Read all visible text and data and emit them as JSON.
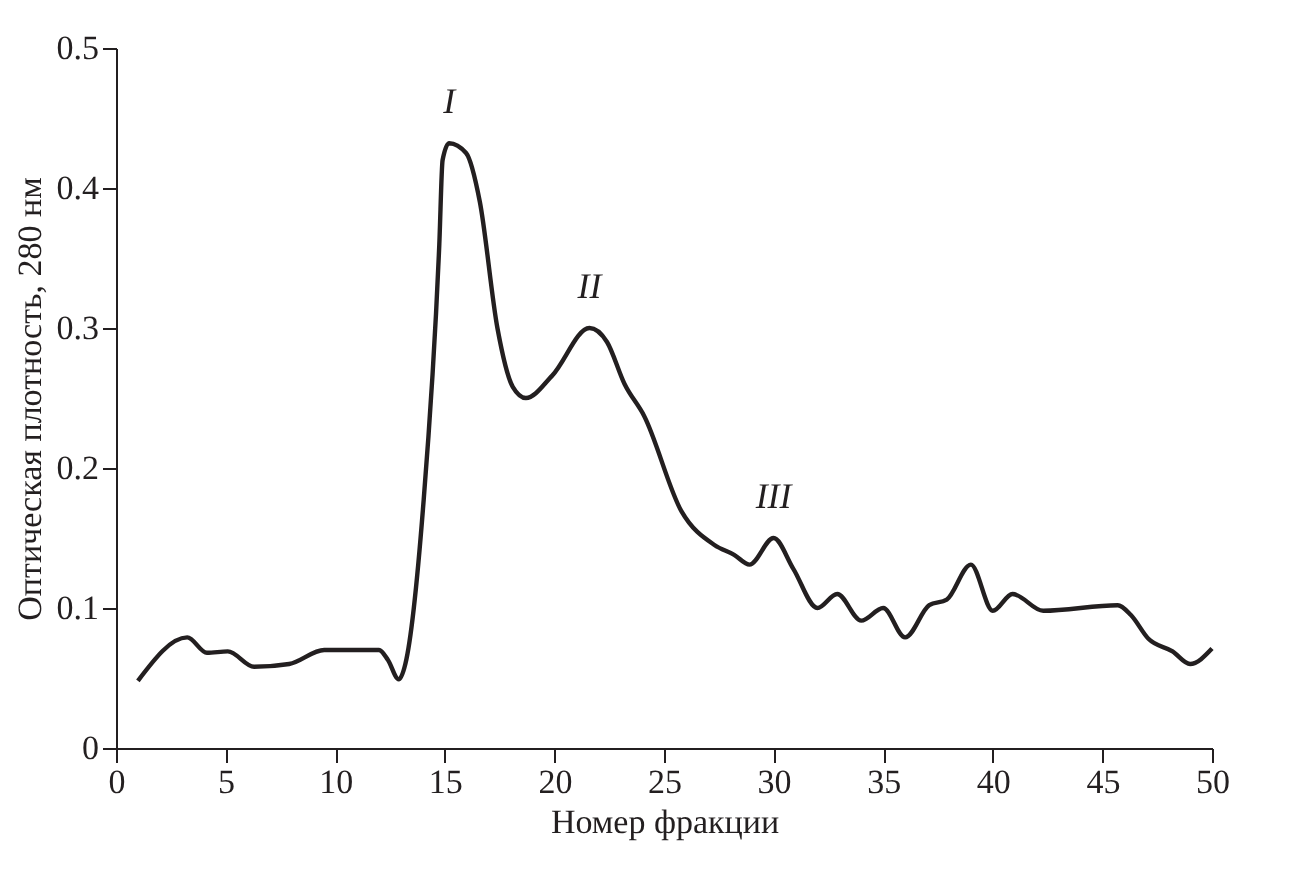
{
  "chart_data": {
    "type": "line",
    "xlabel": "Номер фракции",
    "ylabel": "Оптическая плотность, 280 нм",
    "xlim": [
      0,
      50
    ],
    "xticks": [
      0,
      5,
      10,
      15,
      20,
      25,
      30,
      35,
      40,
      45,
      50
    ],
    "ylim": [
      0,
      0.5
    ],
    "yticks": [
      0,
      0.1,
      0.2,
      0.3,
      0.4,
      0.5
    ],
    "grid": false,
    "marker": "none",
    "line_style": "solid",
    "series": [
      {
        "color": "#231f20",
        "x": [
          1,
          3.25,
          4.15,
          5.1,
          6.3,
          7.9,
          9.5,
          12.0,
          12.4,
          12.9,
          13.2,
          14.0,
          14.75,
          14.9,
          15.2,
          15.97,
          16.6,
          17.4,
          18.1,
          18.7,
          19.9,
          21.6,
          22.4,
          23.2,
          24.1,
          25.8,
          27.3,
          28.2,
          28.9,
          30.0,
          30.9,
          32.0,
          32.9,
          34.0,
          35.0,
          36.0,
          37.1,
          37.9,
          39.0,
          40.0,
          40.9,
          42.3,
          45.7,
          46.3,
          47.1,
          48.2,
          49.0,
          50.0
        ],
        "values": [
          0.048,
          0.079,
          0.068,
          0.069,
          0.058,
          0.06,
          0.07,
          0.07,
          0.063,
          0.049,
          0.06,
          0.17,
          0.36,
          0.42,
          0.432,
          0.425,
          0.39,
          0.3,
          0.258,
          0.25,
          0.266,
          0.3,
          0.29,
          0.26,
          0.237,
          0.169,
          0.145,
          0.138,
          0.131,
          0.15,
          0.128,
          0.1,
          0.11,
          0.091,
          0.1,
          0.079,
          0.102,
          0.106,
          0.131,
          0.098,
          0.11,
          0.098,
          0.102,
          0.095,
          0.078,
          0.069,
          0.06,
          0.071
        ]
      }
    ],
    "annotations": [
      {
        "text": "I",
        "x": 15.2,
        "y": 0.432
      },
      {
        "text": "II",
        "x": 21.6,
        "y": 0.3
      },
      {
        "text": "III",
        "x": 30.0,
        "y": 0.15
      }
    ]
  }
}
